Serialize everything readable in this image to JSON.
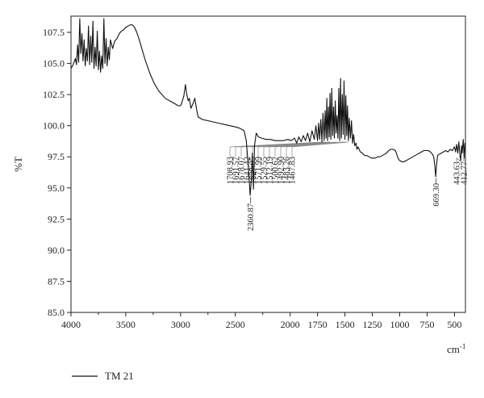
{
  "chart_data": {
    "type": "line",
    "title": "",
    "xlabel": "cm",
    "xlabel_superscript": "-1",
    "ylabel": "%T",
    "xlim": [
      4000,
      400
    ],
    "ylim": [
      85.0,
      108.8
    ],
    "x_reversed": true,
    "grid": false,
    "legend_position": "bottom-left",
    "x_ticks": [
      4000,
      3500,
      3000,
      2500,
      2000,
      1750,
      1500,
      1250,
      1000,
      750,
      500
    ],
    "x_tick_labels": [
      "4000",
      "3500",
      "3000",
      "2500",
      "2000",
      "1750",
      "1500",
      "1250",
      "1000",
      "750",
      "500"
    ],
    "y_ticks": [
      85.0,
      87.5,
      90.0,
      92.5,
      95.0,
      97.5,
      100.0,
      102.5,
      105.0,
      107.5
    ],
    "y_tick_labels": [
      "85.0",
      "87.5",
      "90.0",
      "92.5",
      "95.0",
      "97.5",
      "100.0",
      "102.5",
      "105.0",
      "107.5"
    ],
    "series": [
      {
        "name": "TM 21",
        "color": "#000000",
        "points": [
          [
            4000,
            104.6
          ],
          [
            3980,
            104.9
          ],
          [
            3960,
            105.4
          ],
          [
            3950,
            104.9
          ],
          [
            3940,
            106.5
          ],
          [
            3930,
            105.1
          ],
          [
            3920,
            108.6
          ],
          [
            3910,
            105.8
          ],
          [
            3900,
            107.4
          ],
          [
            3890,
            105.2
          ],
          [
            3880,
            106.9
          ],
          [
            3870,
            104.8
          ],
          [
            3860,
            106.2
          ],
          [
            3850,
            105.2
          ],
          [
            3840,
            108.0
          ],
          [
            3830,
            104.9
          ],
          [
            3820,
            107.2
          ],
          [
            3810,
            105.1
          ],
          [
            3800,
            108.4
          ],
          [
            3790,
            104.6
          ],
          [
            3780,
            106.3
          ],
          [
            3770,
            104.8
          ],
          [
            3760,
            107.6
          ],
          [
            3750,
            104.5
          ],
          [
            3740,
            106.0
          ],
          [
            3730,
            104.3
          ],
          [
            3720,
            105.6
          ],
          [
            3710,
            104.6
          ],
          [
            3700,
            108.6
          ],
          [
            3690,
            105.0
          ],
          [
            3680,
            107.0
          ],
          [
            3670,
            104.8
          ],
          [
            3660,
            106.3
          ],
          [
            3650,
            105.3
          ],
          [
            3640,
            106.9
          ],
          [
            3620,
            106.2
          ],
          [
            3600,
            106.8
          ],
          [
            3580,
            107.0
          ],
          [
            3560,
            107.4
          ],
          [
            3540,
            107.6
          ],
          [
            3520,
            107.7
          ],
          [
            3500,
            107.9
          ],
          [
            3480,
            108.0
          ],
          [
            3460,
            108.1
          ],
          [
            3440,
            108.1
          ],
          [
            3420,
            107.9
          ],
          [
            3400,
            107.5
          ],
          [
            3380,
            107.0
          ],
          [
            3360,
            106.4
          ],
          [
            3340,
            105.8
          ],
          [
            3320,
            105.2
          ],
          [
            3300,
            104.7
          ],
          [
            3280,
            104.2
          ],
          [
            3260,
            103.8
          ],
          [
            3240,
            103.4
          ],
          [
            3220,
            103.1
          ],
          [
            3200,
            102.8
          ],
          [
            3180,
            102.6
          ],
          [
            3160,
            102.4
          ],
          [
            3140,
            102.2
          ],
          [
            3120,
            102.1
          ],
          [
            3100,
            102.0
          ],
          [
            3080,
            101.9
          ],
          [
            3060,
            101.8
          ],
          [
            3040,
            101.7
          ],
          [
            3020,
            101.6
          ],
          [
            3000,
            101.6
          ],
          [
            2990,
            101.8
          ],
          [
            2970,
            102.4
          ],
          [
            2955,
            103.3
          ],
          [
            2945,
            102.6
          ],
          [
            2930,
            102.0
          ],
          [
            2920,
            102.2
          ],
          [
            2905,
            101.4
          ],
          [
            2890,
            101.7
          ],
          [
            2870,
            102.2
          ],
          [
            2855,
            101.4
          ],
          [
            2840,
            100.7
          ],
          [
            2800,
            100.5
          ],
          [
            2750,
            100.4
          ],
          [
            2700,
            100.3
          ],
          [
            2650,
            100.2
          ],
          [
            2600,
            100.1
          ],
          [
            2550,
            100.0
          ],
          [
            2500,
            99.9
          ],
          [
            2460,
            99.8
          ],
          [
            2420,
            99.6
          ],
          [
            2400,
            98.8
          ],
          [
            2380,
            96.5
          ],
          [
            2365,
            94.4
          ],
          [
            2355,
            95.5
          ],
          [
            2345,
            97.8
          ],
          [
            2335,
            94.9
          ],
          [
            2325,
            98.4
          ],
          [
            2310,
            99.4
          ],
          [
            2290,
            99.1
          ],
          [
            2260,
            99.0
          ],
          [
            2220,
            98.9
          ],
          [
            2180,
            98.9
          ],
          [
            2140,
            98.8
          ],
          [
            2100,
            98.8
          ],
          [
            2060,
            98.8
          ],
          [
            2020,
            98.9
          ],
          [
            1990,
            98.8
          ],
          [
            1960,
            99.0
          ],
          [
            1940,
            98.6
          ],
          [
            1920,
            99.1
          ],
          [
            1900,
            98.7
          ],
          [
            1880,
            99.2
          ],
          [
            1860,
            98.8
          ],
          [
            1840,
            99.4
          ],
          [
            1820,
            98.7
          ],
          [
            1800,
            99.6
          ],
          [
            1780,
            98.9
          ],
          [
            1765,
            100.0
          ],
          [
            1750,
            98.8
          ],
          [
            1740,
            100.2
          ],
          [
            1730,
            98.9
          ],
          [
            1720,
            100.5
          ],
          [
            1710,
            98.7
          ],
          [
            1700,
            101.0
          ],
          [
            1690,
            98.8
          ],
          [
            1680,
            101.2
          ],
          [
            1672,
            99.0
          ],
          [
            1665,
            102.2
          ],
          [
            1658,
            98.8
          ],
          [
            1650,
            101.5
          ],
          [
            1643,
            99.1
          ],
          [
            1636,
            102.6
          ],
          [
            1628,
            98.9
          ],
          [
            1620,
            103.0
          ],
          [
            1612,
            99.2
          ],
          [
            1604,
            101.5
          ],
          [
            1596,
            99.0
          ],
          [
            1588,
            102.0
          ],
          [
            1580,
            99.4
          ],
          [
            1572,
            100.8
          ],
          [
            1564,
            99.0
          ],
          [
            1556,
            103.0
          ],
          [
            1548,
            98.8
          ],
          [
            1540,
            103.8
          ],
          [
            1532,
            99.0
          ],
          [
            1524,
            102.5
          ],
          [
            1516,
            99.3
          ],
          [
            1508,
            103.6
          ],
          [
            1500,
            98.9
          ],
          [
            1492,
            102.4
          ],
          [
            1484,
            99.2
          ],
          [
            1476,
            101.6
          ],
          [
            1468,
            98.8
          ],
          [
            1460,
            100.6
          ],
          [
            1450,
            99.0
          ],
          [
            1440,
            100.4
          ],
          [
            1430,
            98.6
          ],
          [
            1420,
            99.3
          ],
          [
            1410,
            98.4
          ],
          [
            1400,
            98.6
          ],
          [
            1390,
            98.1
          ],
          [
            1380,
            98.3
          ],
          [
            1360,
            97.9
          ],
          [
            1340,
            97.8
          ],
          [
            1320,
            97.6
          ],
          [
            1300,
            97.6
          ],
          [
            1280,
            97.5
          ],
          [
            1260,
            97.4
          ],
          [
            1240,
            97.4
          ],
          [
            1220,
            97.4
          ],
          [
            1200,
            97.5
          ],
          [
            1180,
            97.5
          ],
          [
            1160,
            97.6
          ],
          [
            1140,
            97.7
          ],
          [
            1120,
            97.8
          ],
          [
            1100,
            98.0
          ],
          [
            1080,
            98.1
          ],
          [
            1060,
            98.1
          ],
          [
            1040,
            98.0
          ],
          [
            1030,
            97.8
          ],
          [
            1020,
            97.5
          ],
          [
            1010,
            97.3
          ],
          [
            1000,
            97.2
          ],
          [
            980,
            97.1
          ],
          [
            960,
            97.1
          ],
          [
            940,
            97.2
          ],
          [
            920,
            97.3
          ],
          [
            900,
            97.4
          ],
          [
            880,
            97.5
          ],
          [
            860,
            97.6
          ],
          [
            840,
            97.7
          ],
          [
            820,
            97.8
          ],
          [
            800,
            97.9
          ],
          [
            780,
            98.0
          ],
          [
            760,
            98.0
          ],
          [
            740,
            98.0
          ],
          [
            720,
            97.9
          ],
          [
            700,
            97.7
          ],
          [
            690,
            97.5
          ],
          [
            680,
            96.8
          ],
          [
            672,
            95.9
          ],
          [
            665,
            96.7
          ],
          [
            655,
            97.6
          ],
          [
            640,
            97.7
          ],
          [
            620,
            97.8
          ],
          [
            600,
            97.9
          ],
          [
            580,
            98.0
          ],
          [
            560,
            97.9
          ],
          [
            540,
            98.1
          ],
          [
            520,
            98.0
          ],
          [
            500,
            98.3
          ],
          [
            490,
            97.9
          ],
          [
            480,
            98.5
          ],
          [
            470,
            97.8
          ],
          [
            460,
            98.7
          ],
          [
            450,
            97.6
          ],
          [
            443,
            97.2
          ],
          [
            436,
            98.4
          ],
          [
            430,
            97.8
          ],
          [
            420,
            98.9
          ],
          [
            412,
            97.4
          ],
          [
            405,
            98.6
          ],
          [
            400,
            98.5
          ]
        ]
      }
    ],
    "peak_labels": [
      {
        "x": 2360.87,
        "y": 94.4,
        "text": "2360.87"
      },
      {
        "x": 1708.93,
        "y": 98.7,
        "text": "1708.93"
      },
      {
        "x": 1691.57,
        "y": 98.7,
        "text": "1691.57"
      },
      {
        "x": 1678.07,
        "y": 98.8,
        "text": "1678.07"
      },
      {
        "x": 1641.42,
        "y": 98.8,
        "text": "1641.42"
      },
      {
        "x": 1629.85,
        "y": 98.8,
        "text": "1629.85"
      },
      {
        "x": 1571.99,
        "y": 98.9,
        "text": "1571.99"
      },
      {
        "x": 1529.55,
        "y": 98.9,
        "text": "1529.55"
      },
      {
        "x": 1512.19,
        "y": 98.9,
        "text": "1512.19"
      },
      {
        "x": 1500.62,
        "y": 98.9,
        "text": "1500.62"
      },
      {
        "x": 1492.9,
        "y": 98.9,
        "text": "1492.90"
      },
      {
        "x": 1483.26,
        "y": 98.9,
        "text": "1483.26"
      },
      {
        "x": 1467.83,
        "y": 98.8,
        "text": "1467.83"
      },
      {
        "x": 669.3,
        "y": 95.9,
        "text": "669.30"
      },
      {
        "x": 443.63,
        "y": 97.2,
        "text": "443.63"
      },
      {
        "x": 412.77,
        "y": 97.4,
        "text": "412.77"
      }
    ]
  }
}
